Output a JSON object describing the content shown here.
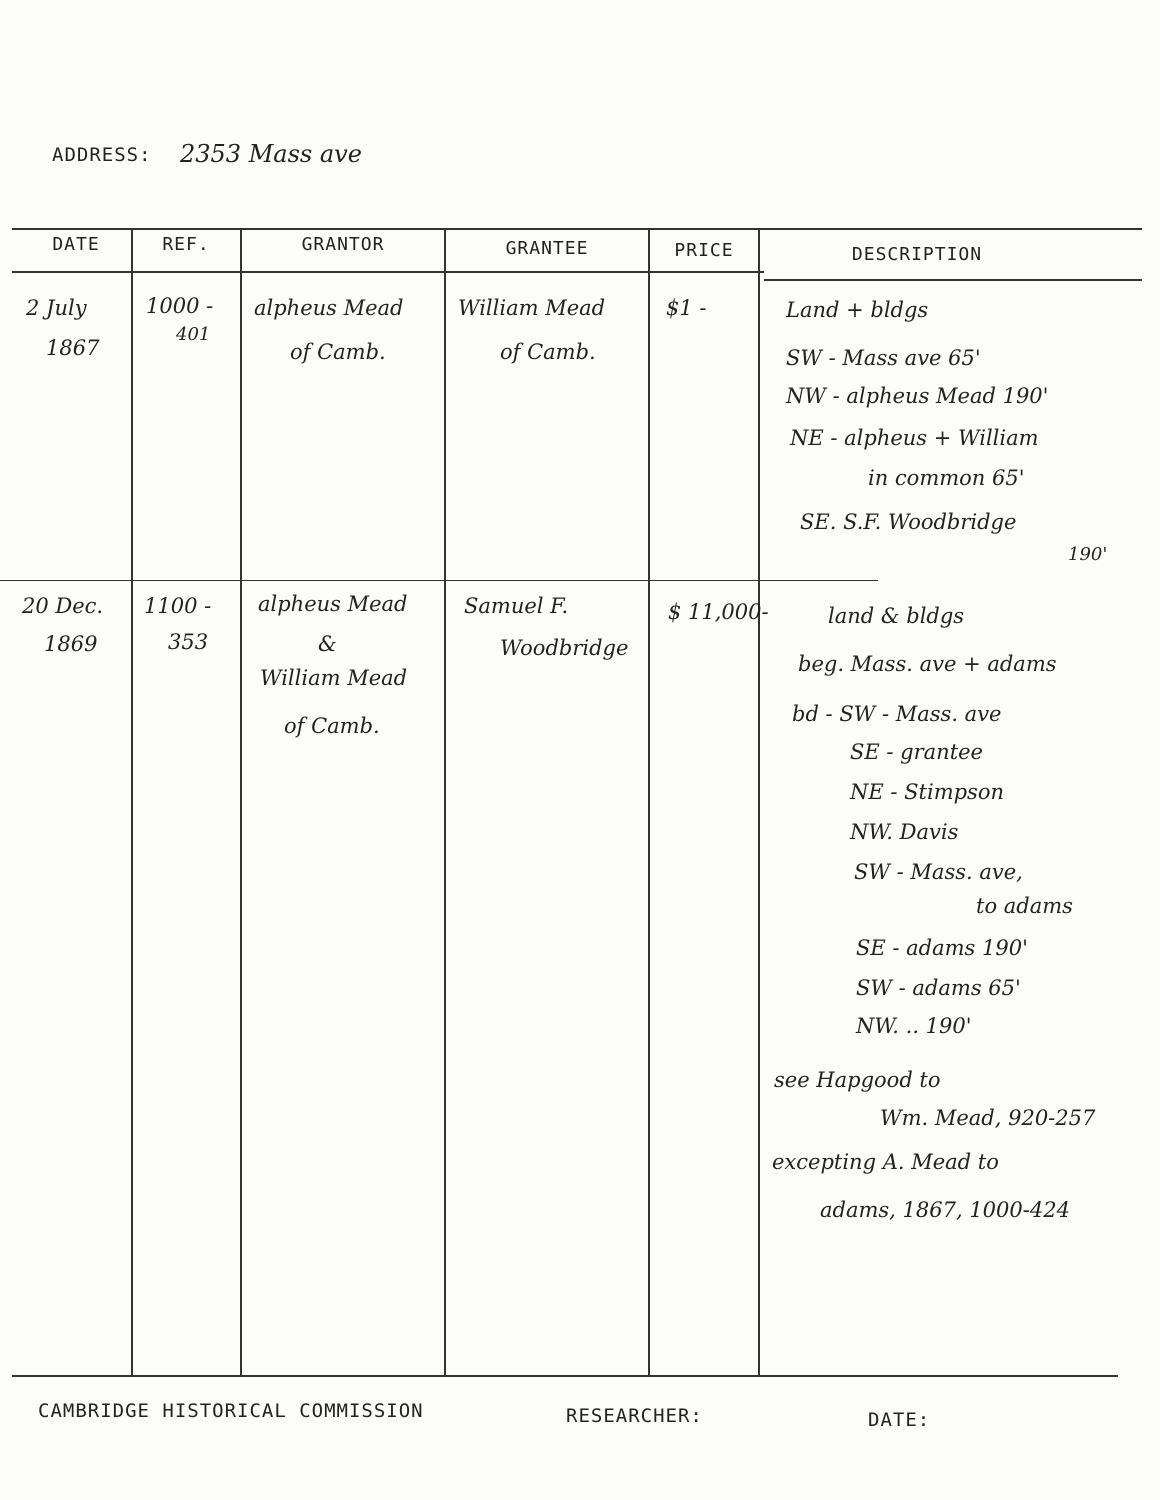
{
  "form": {
    "address_label": "ADDRESS:",
    "address_value": "2353 Mass ave",
    "columns": [
      "DATE",
      "REF.",
      "GRANTOR",
      "GRANTEE",
      "PRICE",
      "DESCRIPTION"
    ],
    "footer": {
      "organization": "CAMBRIDGE HISTORICAL COMMISSION",
      "researcher_label": "RESEARCHER:",
      "date_label": "DATE:"
    }
  },
  "entries": [
    {
      "date": [
        "2 July",
        "1867"
      ],
      "ref": [
        "1000 -",
        "401"
      ],
      "grantor": [
        "alpheus Mead",
        "of Camb."
      ],
      "grantee": [
        "William Mead",
        "of Camb."
      ],
      "price": "$1 -",
      "description": [
        "Land + bldgs",
        "SW - Mass ave 65'",
        "NW - alpheus Mead 190'",
        "NE - alpheus + William",
        "in common 65'",
        "SE. S.F. Woodbridge",
        "190'"
      ]
    },
    {
      "date": [
        "20 Dec.",
        "1869"
      ],
      "ref": [
        "1100 -",
        "353"
      ],
      "grantor": [
        "alpheus Mead",
        "&",
        "William Mead",
        "of Camb."
      ],
      "grantee": [
        "Samuel F.",
        "Woodbridge"
      ],
      "price": "$ 11,000-",
      "description": [
        "land & bldgs",
        "beg. Mass. ave + adams",
        "bd - SW - Mass. ave",
        "SE - grantee",
        "NE - Stimpson",
        "NW. Davis",
        "SW - Mass. ave,",
        "to adams",
        "SE - adams 190'",
        "SW - adams 65'",
        "NW. .. 190'",
        "see Hapgood to",
        "Wm. Mead, 920-257",
        "excepting A. Mead to",
        "adams, 1867, 1000-424"
      ]
    }
  ]
}
